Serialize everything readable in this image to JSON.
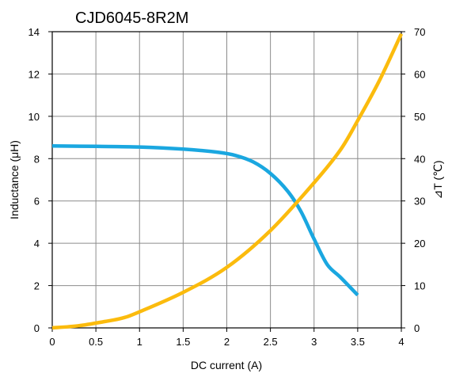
{
  "chart_data": {
    "type": "line",
    "title": "CJD6045-8R2M",
    "xlabel": "DC current (A)",
    "ylabel": "Inductance (μH)",
    "y2label": "⊿T (℃)",
    "xlim": [
      0,
      4
    ],
    "ylim": [
      0,
      14
    ],
    "y2lim": [
      0,
      70
    ],
    "x_ticks": [
      "0",
      "0.5",
      "1",
      "1.5",
      "2",
      "2.5",
      "3",
      "3.5",
      "4"
    ],
    "y_ticks": [
      "0",
      "2",
      "4",
      "6",
      "8",
      "10",
      "12",
      "14"
    ],
    "y2_ticks": [
      "0",
      "10",
      "20",
      "30",
      "40",
      "50",
      "60",
      "70"
    ],
    "grid": true,
    "series": [
      {
        "axis": "left",
        "color": "#1aa7e0",
        "points": [
          [
            0,
            8.6
          ],
          [
            0.5,
            8.58
          ],
          [
            1,
            8.55
          ],
          [
            1.5,
            8.45
          ],
          [
            1.9,
            8.3
          ],
          [
            2.1,
            8.15
          ],
          [
            2.3,
            7.85
          ],
          [
            2.5,
            7.3
          ],
          [
            2.7,
            6.45
          ],
          [
            2.85,
            5.5
          ],
          [
            3.0,
            4.2
          ],
          [
            3.15,
            3.0
          ],
          [
            3.3,
            2.4
          ],
          [
            3.5,
            1.55
          ]
        ]
      },
      {
        "axis": "right",
        "color": "#fbbb0d",
        "points": [
          [
            0,
            0
          ],
          [
            0.3,
            0.5
          ],
          [
            0.6,
            1.5
          ],
          [
            0.8,
            2.3
          ],
          [
            1,
            3.8
          ],
          [
            1.5,
            8.4
          ],
          [
            2,
            14.3
          ],
          [
            2.5,
            23.0
          ],
          [
            3,
            34.3
          ],
          [
            3.3,
            42.0
          ],
          [
            3.5,
            49.0
          ],
          [
            3.75,
            58.5
          ],
          [
            4,
            69.5
          ]
        ]
      }
    ]
  }
}
